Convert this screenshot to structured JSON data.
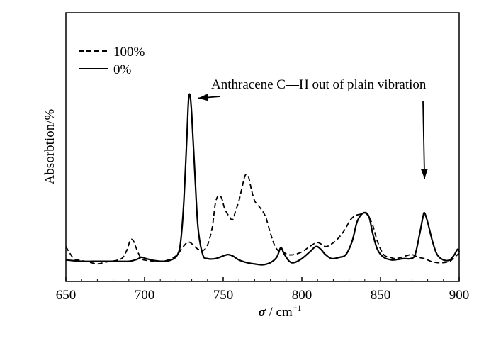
{
  "chart_data": {
    "type": "line",
    "title": "",
    "xlabel_symbol": "σ",
    "xlabel_unit": " / cm",
    "xlabel_exp": "−1",
    "ylabel": "Absorbtion/%",
    "xlim": [
      650,
      900
    ],
    "ylim": [
      0,
      1
    ],
    "y_ticks_shown": false,
    "grid": false,
    "legend_position": "top-left",
    "x_ticks": [
      650,
      700,
      750,
      800,
      850,
      900
    ],
    "series": [
      {
        "name": "100%",
        "style": "dashed",
        "color": "#000000",
        "points": [
          [
            650,
            0.13
          ],
          [
            652,
            0.11
          ],
          [
            655,
            0.085
          ],
          [
            658,
            0.08
          ],
          [
            662,
            0.075
          ],
          [
            666,
            0.07
          ],
          [
            670,
            0.065
          ],
          [
            674,
            0.07
          ],
          [
            678,
            0.075
          ],
          [
            682,
            0.078
          ],
          [
            686,
            0.088
          ],
          [
            689,
            0.12
          ],
          [
            691,
            0.155
          ],
          [
            693,
            0.15
          ],
          [
            695,
            0.12
          ],
          [
            698,
            0.085
          ],
          [
            702,
            0.078
          ],
          [
            708,
            0.075
          ],
          [
            714,
            0.078
          ],
          [
            720,
            0.095
          ],
          [
            724,
            0.125
          ],
          [
            727,
            0.145
          ],
          [
            729,
            0.145
          ],
          [
            731,
            0.135
          ],
          [
            734,
            0.12
          ],
          [
            737,
            0.115
          ],
          [
            740,
            0.135
          ],
          [
            743,
            0.2
          ],
          [
            745,
            0.29
          ],
          [
            747,
            0.32
          ],
          [
            749,
            0.31
          ],
          [
            751,
            0.27
          ],
          [
            754,
            0.24
          ],
          [
            756,
            0.23
          ],
          [
            758,
            0.265
          ],
          [
            760,
            0.3
          ],
          [
            762,
            0.35
          ],
          [
            764,
            0.395
          ],
          [
            766,
            0.39
          ],
          [
            768,
            0.34
          ],
          [
            770,
            0.3
          ],
          [
            772,
            0.285
          ],
          [
            774,
            0.27
          ],
          [
            777,
            0.24
          ],
          [
            780,
            0.18
          ],
          [
            783,
            0.13
          ],
          [
            786,
            0.11
          ],
          [
            788,
            0.11
          ],
          [
            791,
            0.1
          ],
          [
            795,
            0.1
          ],
          [
            800,
            0.11
          ],
          [
            805,
            0.13
          ],
          [
            810,
            0.145
          ],
          [
            815,
            0.13
          ],
          [
            819,
            0.14
          ],
          [
            823,
            0.16
          ],
          [
            827,
            0.19
          ],
          [
            831,
            0.23
          ],
          [
            834,
            0.245
          ],
          [
            837,
            0.25
          ],
          [
            840,
            0.255
          ],
          [
            842,
            0.245
          ],
          [
            845,
            0.21
          ],
          [
            848,
            0.15
          ],
          [
            852,
            0.1
          ],
          [
            856,
            0.09
          ],
          [
            860,
            0.085
          ],
          [
            866,
            0.095
          ],
          [
            870,
            0.1
          ],
          [
            874,
            0.09
          ],
          [
            878,
            0.085
          ],
          [
            882,
            0.075
          ],
          [
            886,
            0.07
          ],
          [
            890,
            0.07
          ],
          [
            894,
            0.075
          ],
          [
            897,
            0.09
          ],
          [
            900,
            0.105
          ]
        ]
      },
      {
        "name": "0%",
        "style": "solid",
        "color": "#000000",
        "points": [
          [
            650,
            0.08
          ],
          [
            660,
            0.075
          ],
          [
            670,
            0.075
          ],
          [
            680,
            0.075
          ],
          [
            690,
            0.075
          ],
          [
            695,
            0.082
          ],
          [
            698,
            0.09
          ],
          [
            701,
            0.085
          ],
          [
            706,
            0.078
          ],
          [
            712,
            0.075
          ],
          [
            717,
            0.08
          ],
          [
            721,
            0.1
          ],
          [
            723,
            0.15
          ],
          [
            725,
            0.3
          ],
          [
            727,
            0.55
          ],
          [
            728,
            0.68
          ],
          [
            729,
            0.69
          ],
          [
            730,
            0.62
          ],
          [
            732,
            0.4
          ],
          [
            734,
            0.2
          ],
          [
            737,
            0.1
          ],
          [
            740,
            0.085
          ],
          [
            745,
            0.085
          ],
          [
            750,
            0.095
          ],
          [
            753,
            0.1
          ],
          [
            756,
            0.095
          ],
          [
            760,
            0.08
          ],
          [
            765,
            0.07
          ],
          [
            770,
            0.065
          ],
          [
            775,
            0.062
          ],
          [
            780,
            0.07
          ],
          [
            784,
            0.09
          ],
          [
            786,
            0.12
          ],
          [
            787,
            0.125
          ],
          [
            789,
            0.1
          ],
          [
            792,
            0.075
          ],
          [
            795,
            0.07
          ],
          [
            800,
            0.085
          ],
          [
            805,
            0.11
          ],
          [
            809,
            0.13
          ],
          [
            812,
            0.12
          ],
          [
            815,
            0.1
          ],
          [
            819,
            0.085
          ],
          [
            824,
            0.09
          ],
          [
            828,
            0.1
          ],
          [
            832,
            0.15
          ],
          [
            835,
            0.22
          ],
          [
            838,
            0.25
          ],
          [
            841,
            0.255
          ],
          [
            843,
            0.235
          ],
          [
            845,
            0.18
          ],
          [
            848,
            0.12
          ],
          [
            852,
            0.09
          ],
          [
            857,
            0.08
          ],
          [
            861,
            0.082
          ],
          [
            865,
            0.085
          ],
          [
            869,
            0.085
          ],
          [
            872,
            0.1
          ],
          [
            875,
            0.18
          ],
          [
            877,
            0.24
          ],
          [
            878,
            0.255
          ],
          [
            880,
            0.22
          ],
          [
            883,
            0.15
          ],
          [
            886,
            0.1
          ],
          [
            890,
            0.08
          ],
          [
            894,
            0.08
          ],
          [
            897,
            0.1
          ],
          [
            899,
            0.12
          ],
          [
            900,
            0.11
          ]
        ]
      }
    ],
    "annotations": [
      {
        "id": "annotation-left",
        "text": "Anthracene C—H out of plain vibration",
        "target_x": 734,
        "target_y": 0.69
      },
      {
        "id": "annotation-right",
        "text": "",
        "target_x": 878,
        "target_y": 0.39
      }
    ]
  }
}
